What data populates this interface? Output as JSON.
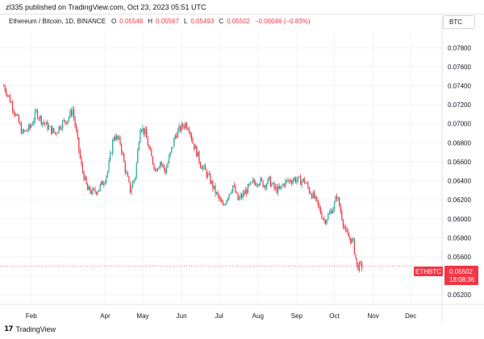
{
  "header": {
    "publish_line": "zl335 published on TradingView.com, Oct 23, 2023 05:51 UTC"
  },
  "legend": {
    "symbol": "Ethereum / Bitcoin, 1D, BINANCE",
    "open_label": "O",
    "open_value": "0.05548",
    "high_label": "H",
    "high_value": "0.05567",
    "low_label": "L",
    "low_value": "0.05493",
    "close_label": "C",
    "close_value": "0.05502",
    "change": "−0.00046 (−0.83%)"
  },
  "currency": "BTC",
  "footer": {
    "logo": "17",
    "brand": "TradingView"
  },
  "price_tag": {
    "ticker": "ETHBTC",
    "price": "0.05502",
    "countdown": "18:08:36"
  },
  "colors": {
    "up": "#26a69a",
    "down": "#f23645",
    "grid": "#f0f3fa",
    "axis_text": "#131722"
  },
  "chart_data": {
    "type": "candlestick",
    "y_ticks": [
      "0.07800",
      "0.07600",
      "0.07400",
      "0.07200",
      "0.07000",
      "0.06800",
      "0.06600",
      "0.06400",
      "0.06200",
      "0.06000",
      "0.05800",
      "0.05600",
      "0.05400",
      "0.05200"
    ],
    "ylim": [
      0.051,
      0.0798
    ],
    "x_ticks": [
      {
        "label": "Feb",
        "date": "2023-02-01"
      },
      {
        "label": "Apr",
        "date": "2023-04-01"
      },
      {
        "label": "May",
        "date": "2023-05-01"
      },
      {
        "label": "Jun",
        "date": "2023-06-01"
      },
      {
        "label": "Jul",
        "date": "2023-07-01"
      },
      {
        "label": "Aug",
        "date": "2023-08-01"
      },
      {
        "label": "Sep",
        "date": "2023-09-01"
      },
      {
        "label": "Oct",
        "date": "2023-10-01"
      },
      {
        "label": "Nov",
        "date": "2023-11-01"
      },
      {
        "label": "Dec",
        "date": "2023-12-01"
      }
    ],
    "x_range": [
      "2023-01-07",
      "2023-12-26"
    ],
    "closes": [
      [
        "2023-01-10",
        0.074
      ],
      [
        "2023-01-15",
        0.0725
      ],
      [
        "2023-01-20",
        0.0708
      ],
      [
        "2023-01-25",
        0.069
      ],
      [
        "2023-01-31",
        0.0696
      ],
      [
        "2023-02-05",
        0.0712
      ],
      [
        "2023-02-10",
        0.0702
      ],
      [
        "2023-02-15",
        0.0696
      ],
      [
        "2023-02-20",
        0.069
      ],
      [
        "2023-02-25",
        0.07
      ],
      [
        "2023-03-02",
        0.0705
      ],
      [
        "2023-03-06",
        0.0715
      ],
      [
        "2023-03-09",
        0.069
      ],
      [
        "2023-03-13",
        0.0655
      ],
      [
        "2023-03-18",
        0.063
      ],
      [
        "2023-03-23",
        0.0628
      ],
      [
        "2023-03-27",
        0.0632
      ],
      [
        "2023-03-31",
        0.064
      ],
      [
        "2023-04-03",
        0.065
      ],
      [
        "2023-04-08",
        0.0688
      ],
      [
        "2023-04-13",
        0.068
      ],
      [
        "2023-04-17",
        0.0652
      ],
      [
        "2023-04-21",
        0.063
      ],
      [
        "2023-04-25",
        0.0645
      ],
      [
        "2023-04-29",
        0.0698
      ],
      [
        "2023-05-03",
        0.069
      ],
      [
        "2023-05-07",
        0.0668
      ],
      [
        "2023-05-11",
        0.0652
      ],
      [
        "2023-05-15",
        0.066
      ],
      [
        "2023-05-19",
        0.065
      ],
      [
        "2023-05-23",
        0.0668
      ],
      [
        "2023-05-27",
        0.0688
      ],
      [
        "2023-05-31",
        0.0695
      ],
      [
        "2023-06-04",
        0.07
      ],
      [
        "2023-06-07",
        0.0696
      ],
      [
        "2023-06-10",
        0.068
      ],
      [
        "2023-06-13",
        0.067
      ],
      [
        "2023-06-16",
        0.0658
      ],
      [
        "2023-06-20",
        0.065
      ],
      [
        "2023-06-24",
        0.064
      ],
      [
        "2023-06-28",
        0.0628
      ],
      [
        "2023-07-02",
        0.0618
      ],
      [
        "2023-07-04",
        0.0612
      ],
      [
        "2023-07-08",
        0.0625
      ],
      [
        "2023-07-12",
        0.0635
      ],
      [
        "2023-07-16",
        0.062
      ],
      [
        "2023-07-20",
        0.0625
      ],
      [
        "2023-07-24",
        0.0632
      ],
      [
        "2023-07-28",
        0.0638
      ],
      [
        "2023-08-02",
        0.064
      ],
      [
        "2023-08-06",
        0.0636
      ],
      [
        "2023-08-10",
        0.064
      ],
      [
        "2023-08-14",
        0.0632
      ],
      [
        "2023-08-18",
        0.063
      ],
      [
        "2023-08-22",
        0.0638
      ],
      [
        "2023-08-26",
        0.064
      ],
      [
        "2023-08-30",
        0.0642
      ],
      [
        "2023-09-03",
        0.064
      ],
      [
        "2023-09-07",
        0.064
      ],
      [
        "2023-09-11",
        0.063
      ],
      [
        "2023-09-15",
        0.0622
      ],
      [
        "2023-09-19",
        0.061
      ],
      [
        "2023-09-23",
        0.0598
      ],
      [
        "2023-09-27",
        0.0605
      ],
      [
        "2023-10-01",
        0.0615
      ],
      [
        "2023-10-03",
        0.0625
      ],
      [
        "2023-10-06",
        0.0608
      ],
      [
        "2023-10-10",
        0.0585
      ],
      [
        "2023-10-13",
        0.058
      ],
      [
        "2023-10-16",
        0.0575
      ],
      [
        "2023-10-19",
        0.055
      ],
      [
        "2023-10-21",
        0.055
      ],
      [
        "2023-10-23",
        0.05502
      ]
    ]
  }
}
